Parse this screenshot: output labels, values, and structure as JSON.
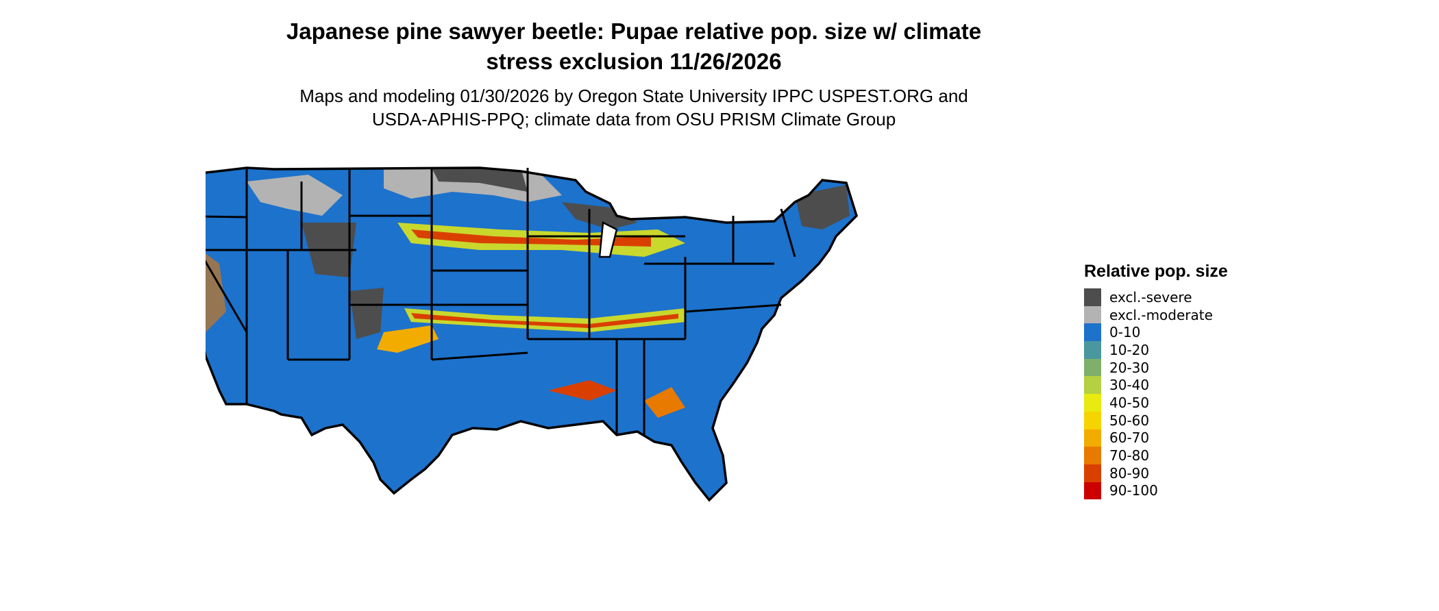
{
  "title_line1": "Japanese pine sawyer beetle: Pupae relative pop. size w/ climate",
  "title_line2": "stress exclusion 11/26/2026",
  "subtitle_line1": "Maps and modeling 01/30/2026 by Oregon State University IPPC USPEST.ORG and",
  "subtitle_line2": "USDA-APHIS-PPQ; climate data from OSU PRISM Climate Group",
  "legend": {
    "title": "Relative pop. size",
    "items": [
      {
        "label": "excl.-severe",
        "color": "#4d4d4d"
      },
      {
        "label": "excl.-moderate",
        "color": "#b3b3b3"
      },
      {
        "label": "0-10",
        "color": "#1d72cc"
      },
      {
        "label": "10-20",
        "color": "#4a97a0"
      },
      {
        "label": "20-30",
        "color": "#7eb06c"
      },
      {
        "label": "30-40",
        "color": "#b5d040"
      },
      {
        "label": "40-50",
        "color": "#e8ea10"
      },
      {
        "label": "50-60",
        "color": "#f6d400"
      },
      {
        "label": "60-70",
        "color": "#f2ac00"
      },
      {
        "label": "70-80",
        "color": "#e87a00"
      },
      {
        "label": "80-90",
        "color": "#d94000"
      },
      {
        "label": "90-100",
        "color": "#cc0000"
      }
    ]
  }
}
